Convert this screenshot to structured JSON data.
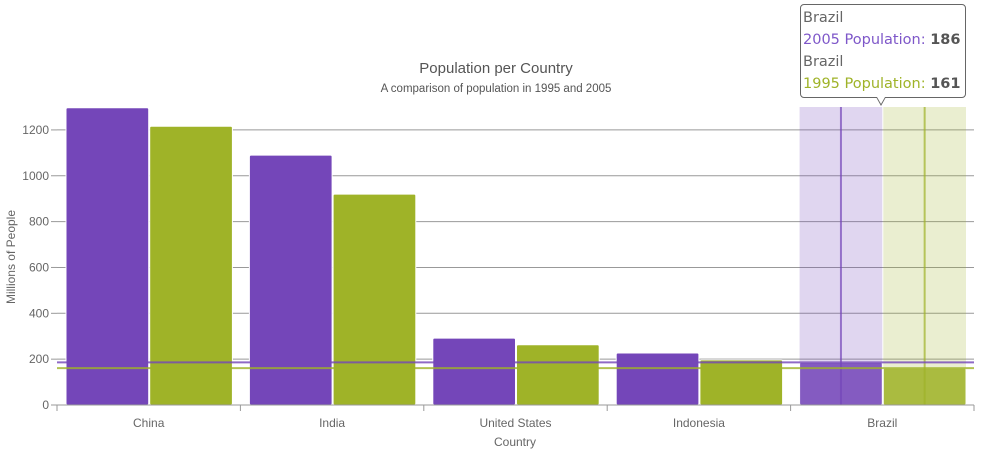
{
  "chart_data": {
    "type": "bar",
    "title": "Population per Country",
    "subtitle": "A comparison of population in 1995 and 2005",
    "xlabel": "Country",
    "ylabel": "Millions of People",
    "categories": [
      "China",
      "India",
      "United States",
      "Indonesia",
      "Brazil"
    ],
    "series": [
      {
        "name": "2005 Population",
        "color": "#7446b9",
        "values": [
          1297,
          1090,
          292,
          227,
          186
        ]
      },
      {
        "name": "1995 Population",
        "color": "#9fb328",
        "values": [
          1216,
          920,
          263,
          197,
          161
        ]
      }
    ],
    "ylim": [
      0,
      1300
    ],
    "yticks": [
      0,
      200,
      400,
      600,
      800,
      1000,
      1200
    ],
    "grid": true,
    "highlighted_category": "Brazil",
    "crosshair_values": [
      186,
      161
    ]
  },
  "tooltip": {
    "lines": [
      {
        "category": "Brazil",
        "label": "2005 Population:",
        "value": "186",
        "color": "#7446b9"
      },
      {
        "category": "Brazil",
        "label": "1995 Population:",
        "value": "161",
        "color": "#9fb328"
      }
    ]
  }
}
